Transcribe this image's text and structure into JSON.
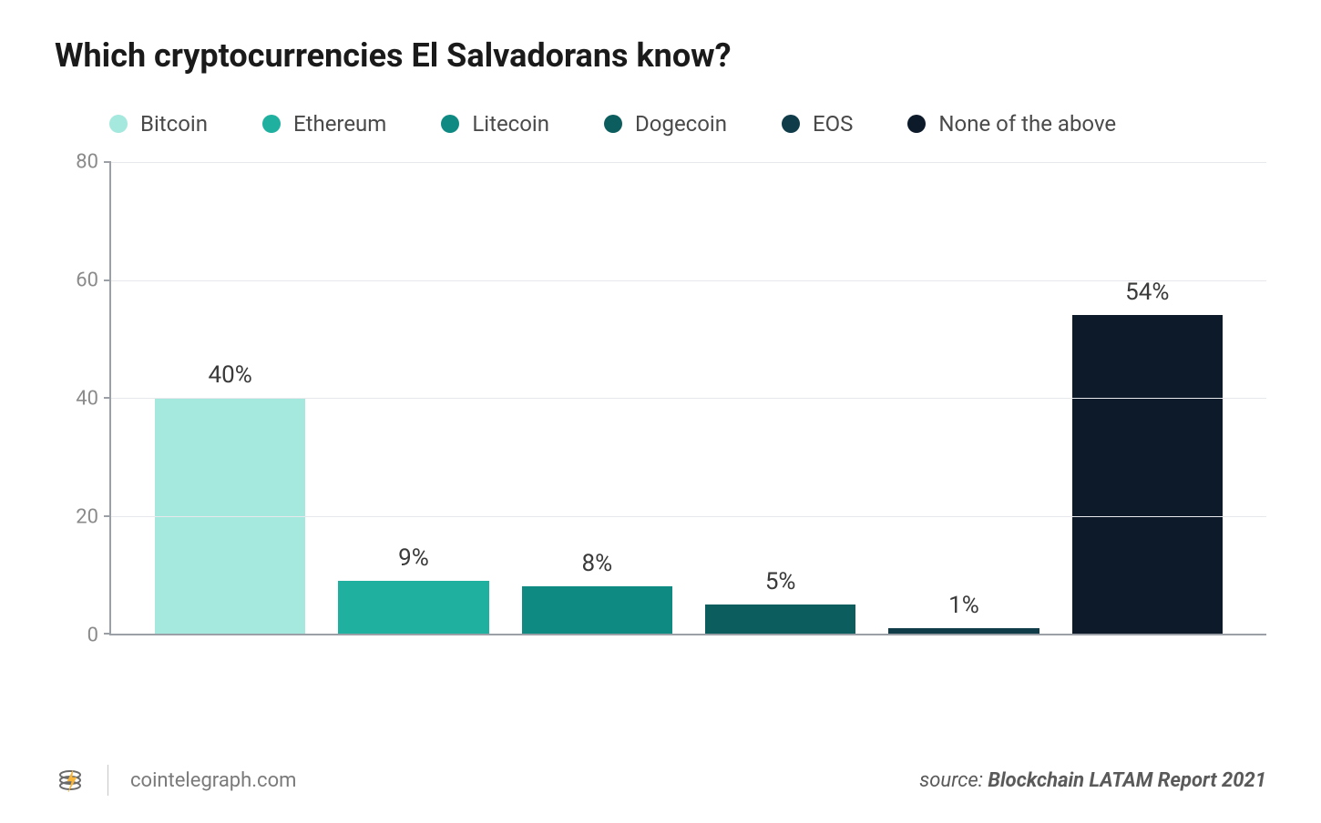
{
  "title": "Which cryptocurrencies El Salvadorans know?",
  "chart": {
    "type": "bar",
    "ylim_max": 80,
    "ytick_step": 20,
    "yticks": [
      0,
      20,
      40,
      60,
      80
    ],
    "grid_color": "#e6e8eb",
    "axis_color": "#9aa0a6",
    "background_color": "#ffffff",
    "bar_label_suffix": "%",
    "bar_label_fontsize": 26,
    "bar_label_color": "#3a3a3a",
    "ytick_fontsize": 22,
    "ytick_color": "#8a8a8a",
    "series": [
      {
        "label": "Bitcoin",
        "value": 40,
        "color": "#a5e8dd"
      },
      {
        "label": "Ethereum",
        "value": 9,
        "color": "#1fb0a0"
      },
      {
        "label": "Litecoin",
        "value": 8,
        "color": "#0f8a83"
      },
      {
        "label": "Dogecoin",
        "value": 5,
        "color": "#0c5d5e"
      },
      {
        "label": "EOS",
        "value": 1,
        "color": "#103c4a"
      },
      {
        "label": "None of the above",
        "value": 54,
        "color": "#0c1a2a"
      }
    ]
  },
  "legend_fontsize": 24,
  "legend_color": "#4a4a4a",
  "footer": {
    "site": "cointelegraph.com",
    "source_prefix": "source: ",
    "source_name": "Blockchain LATAM Report 2021",
    "logo_colors": {
      "ring": "#6b6b6b",
      "bolt": "#f7b53b"
    }
  },
  "title_fontsize": 36,
  "title_color": "#1a1a1a"
}
